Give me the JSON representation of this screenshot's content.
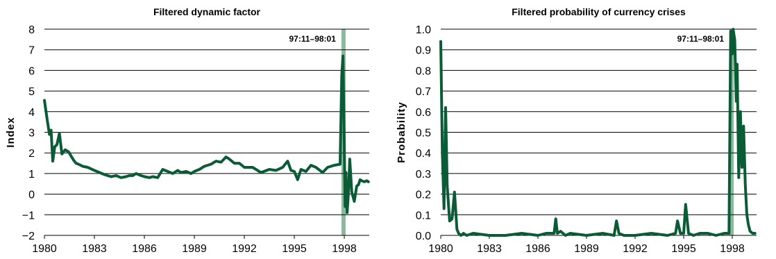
{
  "colors": {
    "line": "#0a5c36",
    "shade": "#8db89e",
    "grid": "#000000"
  },
  "chart_data": [
    {
      "type": "line",
      "title": "Filtered dynamic factor",
      "ylabel": "Index",
      "xlabel": "",
      "ylim": [
        -2,
        8
      ],
      "xlim": [
        1980,
        1999.5
      ],
      "yticks": [
        -2,
        -1,
        0,
        1,
        2,
        3,
        4,
        5,
        6,
        7,
        8
      ],
      "ytick_labels": [
        "−2",
        "−1",
        "0",
        "1",
        "2",
        "3",
        "4",
        "5",
        "6",
        "7",
        "8"
      ],
      "xticks": [
        1980,
        1983,
        1986,
        1989,
        1992,
        1995,
        1998
      ],
      "xtick_labels": [
        "1980",
        "1983",
        "1986",
        "1989",
        "1992",
        "1995",
        "1998"
      ],
      "grid": true,
      "shaded_period": {
        "label": "97:11–98:01",
        "start": 1997.83,
        "end": 1998.08
      },
      "series": [
        {
          "x": [
            1980.0,
            1980.15,
            1980.3,
            1980.4,
            1980.5,
            1980.62,
            1980.75,
            1980.9,
            1981.05,
            1981.25,
            1981.45,
            1981.6,
            1981.75,
            1981.9,
            1982.05,
            1982.3,
            1982.6,
            1983.0,
            1983.3,
            1983.6,
            1984.0,
            1984.3,
            1984.6,
            1984.9,
            1985.1,
            1985.3,
            1985.5,
            1985.8,
            1986.0,
            1986.3,
            1986.5,
            1986.8,
            1987.1,
            1987.4,
            1987.7,
            1988.0,
            1988.2,
            1988.5,
            1988.8,
            1989.0,
            1989.3,
            1989.6,
            1990.0,
            1990.3,
            1990.6,
            1990.9,
            1991.1,
            1991.4,
            1991.7,
            1992.0,
            1992.5,
            1993.0,
            1993.5,
            1993.9,
            1994.3,
            1994.6,
            1994.8,
            1995.0,
            1995.2,
            1995.4,
            1995.7,
            1996.0,
            1996.3,
            1996.7,
            1997.0,
            1997.4,
            1997.75,
            1997.85,
            1997.92,
            1998.0,
            1998.05,
            1998.1,
            1998.17,
            1998.25,
            1998.33,
            1998.45,
            1998.6,
            1998.75,
            1998.85,
            1998.95,
            1999.05,
            1999.2,
            1999.35,
            1999.45
          ],
          "y": [
            4.55,
            3.7,
            2.9,
            3.1,
            1.6,
            2.3,
            2.4,
            2.95,
            1.95,
            2.15,
            2.05,
            1.85,
            1.65,
            1.5,
            1.45,
            1.35,
            1.3,
            1.15,
            1.05,
            0.95,
            0.85,
            0.9,
            0.8,
            0.85,
            0.9,
            0.9,
            1.0,
            0.9,
            0.85,
            0.8,
            0.85,
            0.8,
            1.2,
            1.1,
            1.0,
            1.15,
            1.05,
            1.1,
            1.0,
            1.1,
            1.2,
            1.35,
            1.45,
            1.6,
            1.55,
            1.8,
            1.7,
            1.5,
            1.5,
            1.3,
            1.3,
            1.05,
            1.2,
            1.15,
            1.3,
            1.6,
            1.15,
            1.1,
            0.7,
            1.2,
            1.1,
            1.4,
            1.3,
            1.05,
            1.3,
            1.4,
            1.45,
            5.8,
            6.7,
            2.5,
            -0.6,
            1.05,
            -0.9,
            0.05,
            1.7,
            0.1,
            -0.35,
            0.4,
            0.45,
            0.7,
            0.65,
            0.6,
            0.65,
            0.6
          ]
        }
      ]
    },
    {
      "type": "line",
      "title": "Filtered probability of currency crises",
      "ylabel": "Probability",
      "xlabel": "",
      "ylim": [
        0,
        1
      ],
      "xlim": [
        1980,
        1999.5
      ],
      "yticks": [
        0,
        0.1,
        0.2,
        0.3,
        0.4,
        0.5,
        0.6,
        0.7,
        0.8,
        0.9,
        1.0
      ],
      "ytick_labels": [
        "0.0",
        "0.1",
        "0.2",
        "0.3",
        "0.4",
        "0.5",
        "0.6",
        "0.7",
        "0.8",
        "0.9",
        "1.0"
      ],
      "xticks": [
        1980,
        1983,
        1986,
        1989,
        1992,
        1995,
        1998
      ],
      "xtick_labels": [
        "1980",
        "1983",
        "1986",
        "1989",
        "1992",
        "1995",
        "1998"
      ],
      "grid": true,
      "shaded_period": {
        "label": "97:11–98:01",
        "start": 1997.83,
        "end": 1998.08
      },
      "series": [
        {
          "x": [
            1980.0,
            1980.1,
            1980.2,
            1980.3,
            1980.4,
            1980.55,
            1980.7,
            1980.85,
            1981.0,
            1981.1,
            1981.25,
            1981.4,
            1981.6,
            1982.0,
            1983.0,
            1984.0,
            1985.0,
            1986.0,
            1986.5,
            1987.0,
            1987.1,
            1987.2,
            1987.4,
            1987.7,
            1988.0,
            1989.0,
            1990.0,
            1990.7,
            1990.85,
            1991.0,
            1991.3,
            1992.0,
            1993.0,
            1994.0,
            1994.5,
            1994.62,
            1994.8,
            1995.0,
            1995.12,
            1995.3,
            1995.6,
            1996.0,
            1996.5,
            1997.0,
            1997.5,
            1997.8,
            1997.9,
            1998.0,
            1998.05,
            1998.15,
            1998.25,
            1998.3,
            1998.4,
            1998.5,
            1998.6,
            1998.7,
            1998.8,
            1998.9,
            1999.0,
            1999.1,
            1999.25,
            1999.4
          ],
          "y": [
            0.94,
            0.4,
            0.13,
            0.62,
            0.24,
            0.07,
            0.08,
            0.21,
            0.03,
            0.01,
            0.0,
            0.01,
            0.0,
            0.01,
            0.0,
            0.0,
            0.01,
            0.0,
            0.01,
            0.01,
            0.08,
            0.01,
            0.02,
            0.0,
            0.01,
            0.0,
            0.01,
            0.0,
            0.07,
            0.01,
            0.0,
            0.0,
            0.01,
            0.0,
            0.01,
            0.07,
            0.01,
            0.01,
            0.15,
            0.01,
            0.0,
            0.01,
            0.01,
            0.0,
            0.01,
            0.01,
            0.99,
            0.88,
            1.0,
            0.95,
            0.65,
            0.83,
            0.28,
            0.6,
            0.33,
            0.53,
            0.25,
            0.1,
            0.05,
            0.02,
            0.01,
            0.01
          ]
        }
      ]
    }
  ]
}
